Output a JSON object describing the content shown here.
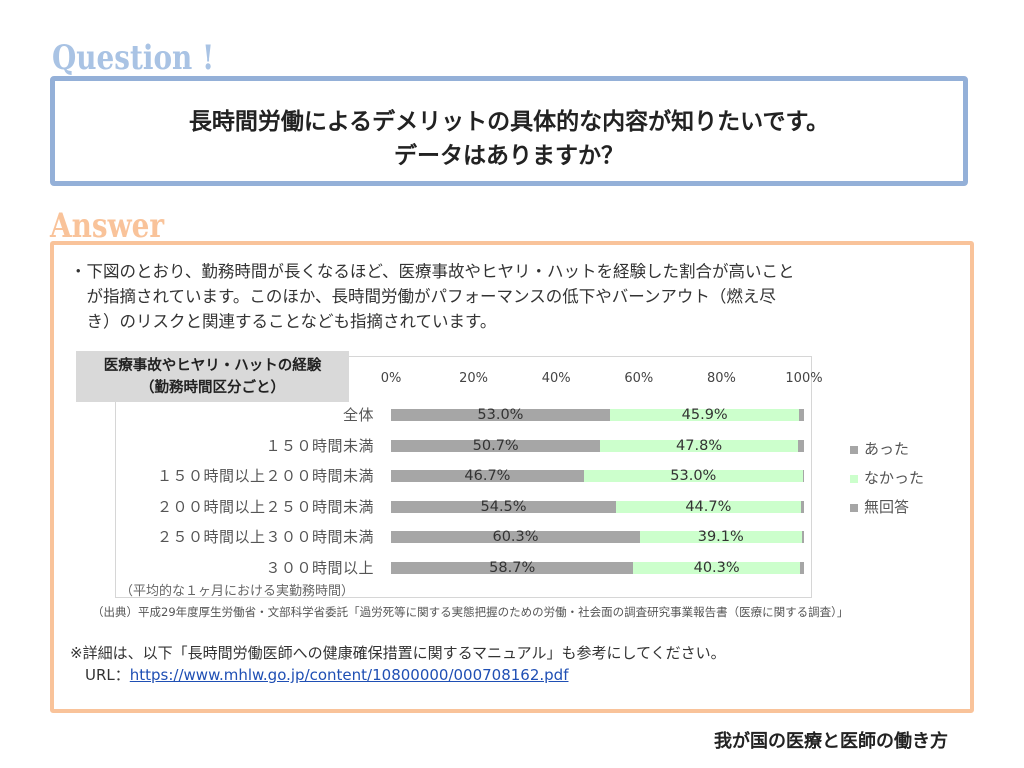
{
  "question": {
    "heading": "Question !",
    "line1": "長時間労働によるデメリットの具体的な内容が知りたいです。",
    "line2": "データはありますか？"
  },
  "answer": {
    "heading": "Answer",
    "intro_lines": [
      "・下図のとおり、勤務時間が長くなるほど、医療事故やヒヤリ・ハットを経験した割合が高いこと",
      "　が指摘されています。このほか、長時間労働がパフォーマンスの低下やバーンアウト（燃え尽",
      "　き）のリスクと関連することなども指摘されています。"
    ],
    "source": "（出典）平成29年度厚生労働省・文部科学省委託「過労死等に関する実態把握のための労働・社会面の調査研究事業報告書（医療に関する調査）」",
    "note": "※詳細は、以下「長時間労働医師への健康確保措置に関するマニュアル」も参考にしてください。",
    "url_label": "URL：",
    "url": "https://www.mhlw.go.jp/content/10800000/000708162.pdf"
  },
  "footer": "我が国の医療と医師の働き方",
  "chart_data": {
    "type": "bar",
    "orientation": "horizontal",
    "stacked": true,
    "title_lines": [
      "医療事故やヒヤリ・ハットの経験",
      "（勤務時間区分ごと）"
    ],
    "xlabel": "（平均的な１ヶ月における実勤務時間）",
    "xlim": [
      0,
      100
    ],
    "xticks": [
      "0%",
      "20%",
      "40%",
      "60%",
      "80%",
      "100%"
    ],
    "categories": [
      "全体",
      "１５０時間未満",
      "１５０時間以上２００時間未満",
      "２００時間以上２５０時間未満",
      "２５０時間以上３００時間未満",
      "３００時間以上"
    ],
    "series": [
      {
        "name": "あった",
        "color": "#a6a6a6",
        "values": [
          53.0,
          50.7,
          46.7,
          54.5,
          60.3,
          58.7
        ],
        "labels": [
          "53.0%",
          "50.7%",
          "46.7%",
          "54.5%",
          "60.3%",
          "58.7%"
        ]
      },
      {
        "name": "なかった",
        "color": "#ccffcc",
        "values": [
          45.9,
          47.8,
          53.0,
          44.7,
          39.1,
          40.3
        ],
        "labels": [
          "45.9%",
          "47.8%",
          "53.0%",
          "44.7%",
          "39.1%",
          "40.3%"
        ]
      },
      {
        "name": "無回答",
        "color": "#a6a6a6",
        "values": [
          1.1,
          1.5,
          0.3,
          0.8,
          0.6,
          1.0
        ]
      }
    ],
    "legend_position": "right",
    "grid": false
  }
}
